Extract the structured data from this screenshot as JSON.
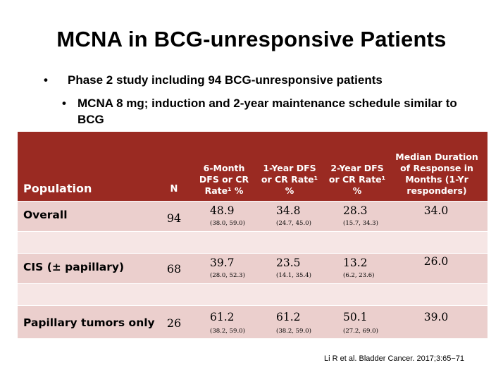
{
  "slide": {
    "title": "MCNA in BCG-unresponsive Patients",
    "bullet_symbol": "•",
    "bullet1": "Phase 2 study including 94 BCG-unresponsive patients",
    "bullet2": "MCNA 8 mg; induction and 2-year maintenance schedule similar to BCG",
    "citation": "Li R et al. Bladder Cancer. 2017;3:65−71"
  },
  "table": {
    "header": {
      "population": "Population",
      "n": "N",
      "col1": "6-Month DFS or CR Rate¹ %",
      "col2": "1-Year DFS or CR Rate¹ %",
      "col3": "2-Year DFS or CR Rate¹ %",
      "col4": "Median Duration of Response in Months (1-Yr responders)"
    },
    "rows": [
      {
        "label": "Overall",
        "n": "94",
        "m6": "48.9",
        "m6_ci": "(38.0, 59.0)",
        "y1": "34.8",
        "y1_ci": "(24.7, 45.0)",
        "y2": "28.3",
        "y2_ci": "(15.7, 34.3)",
        "median": "34.0"
      },
      {
        "label": "CIS (± papillary)",
        "n": "68",
        "m6": "39.7",
        "m6_ci": "(28.0, 52.3)",
        "y1": "23.5",
        "y1_ci": "(14.1, 35.4)",
        "y2": "13.2",
        "y2_ci": "(6.2, 23.6)",
        "median": "26.0"
      },
      {
        "label": "Papillary tumors only",
        "n": "26",
        "m6": "61.2",
        "m6_ci": "(38.2, 59.0)",
        "y1": "61.2",
        "y1_ci": "(38.2, 59.0)",
        "y2": "50.1",
        "y2_ci": "(27.2, 69.0)",
        "median": "39.0"
      }
    ],
    "colors": {
      "header_bg": "#9a2a22",
      "row_bg": "#ebcfcd",
      "spacer_bg": "#f6e6e5"
    }
  }
}
